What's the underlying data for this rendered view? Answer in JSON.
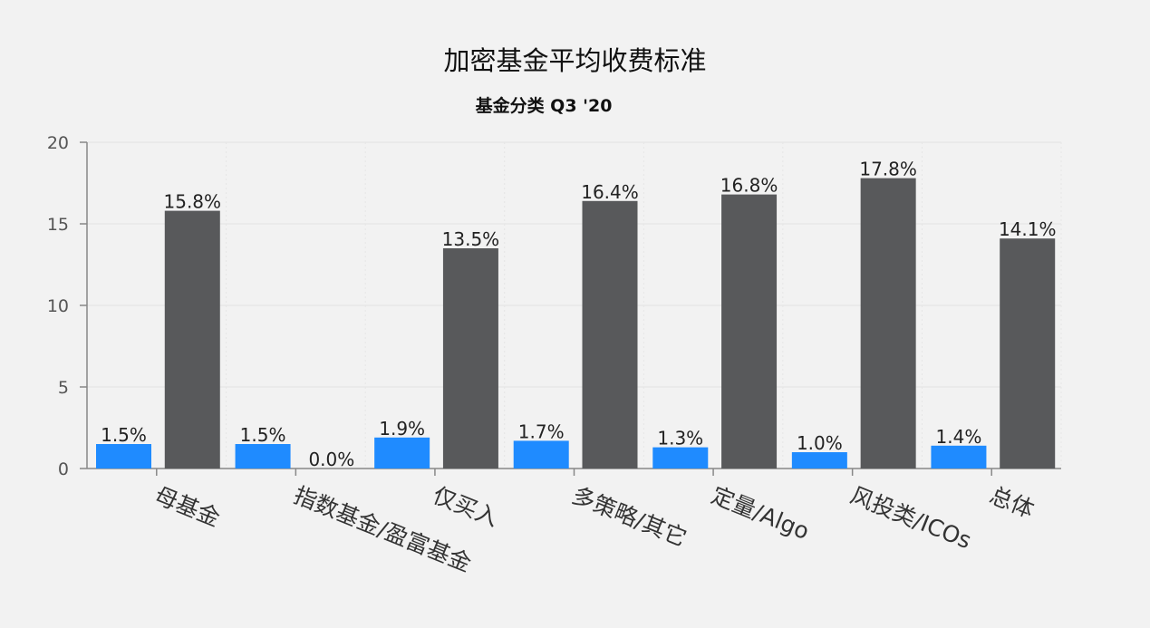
{
  "chart_data": {
    "type": "bar",
    "title": "加密基金平均收费标准",
    "subtitle": "基金分类 Q3 '20",
    "categories": [
      "母基金",
      "指数基金/盈富基金",
      "仅买入",
      "多策略/其它",
      "定量/Algo",
      "风投类/ICOs",
      "总体"
    ],
    "series": [
      {
        "values": [
          1.5,
          1.5,
          1.9,
          1.7,
          1.3,
          1.0,
          1.4
        ],
        "labels": [
          "1.5%",
          "1.5%",
          "1.9%",
          "1.7%",
          "1.3%",
          "1.0%",
          "1.4%"
        ],
        "color": "#1f8bff"
      },
      {
        "values": [
          15.8,
          0.0,
          13.5,
          16.4,
          16.8,
          17.8,
          14.1
        ],
        "labels": [
          "15.8%",
          "0.0%",
          "13.5%",
          "16.4%",
          "16.8%",
          "17.8%",
          "14.1%"
        ],
        "color": "#58595b"
      }
    ],
    "y_ticks": [
      "0",
      "5",
      "10",
      "15",
      "20"
    ],
    "ylim": [
      0,
      20
    ],
    "grid": true
  }
}
